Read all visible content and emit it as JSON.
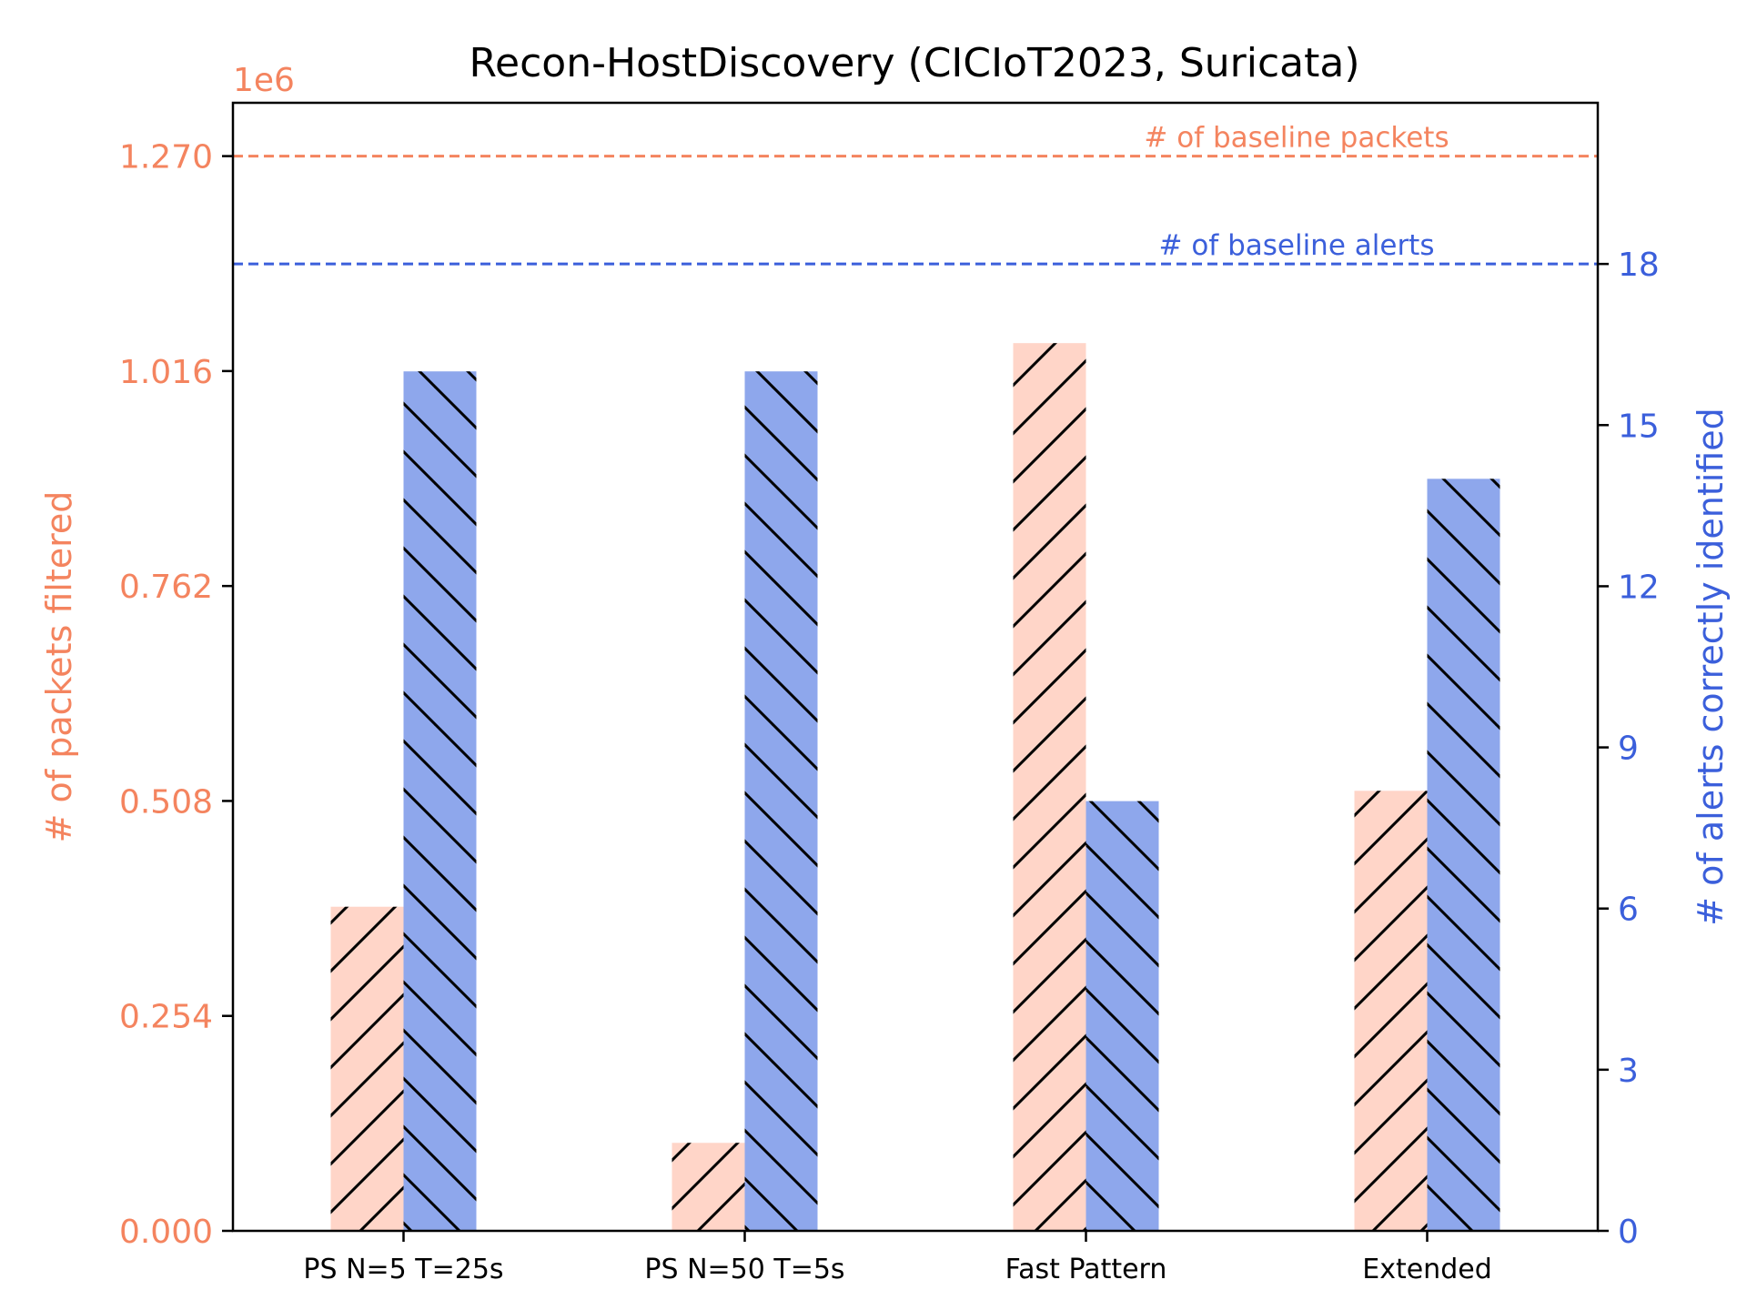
{
  "chart_data": {
    "type": "bar",
    "title": "Recon-HostDiscovery (CICIoT2023, Suricata)",
    "categories": [
      "PS N=5 T=25s",
      "PS N=50 T=5s",
      "Fast Pattern",
      "Extended"
    ],
    "y_left": {
      "label": "# of packets filtered",
      "offset_label": "1e6",
      "scale": 1000000,
      "ylim": [
        0,
        1.333
      ],
      "ticks": [
        "0.000",
        "0.254",
        "0.508",
        "0.762",
        "1.016",
        "1.270"
      ],
      "color": "#f4845f"
    },
    "y_right": {
      "label": "# of alerts correctly identified",
      "ylim": [
        0,
        21
      ],
      "ticks": [
        "0",
        "3",
        "6",
        "9",
        "12",
        "15",
        "18"
      ],
      "color": "#3b5fdb"
    },
    "series": [
      {
        "axis": "left",
        "values": [
          383000,
          104000,
          1049000,
          520000
        ],
        "fill": "#ffd5c8",
        "hatch": "forward"
      },
      {
        "axis": "right",
        "values": [
          16,
          16,
          8,
          14
        ],
        "fill": "#8ea7ec",
        "hatch": "back"
      }
    ],
    "reference_lines": [
      {
        "axis": "left",
        "value": 1270000,
        "label": "# of baseline packets",
        "color": "#f4845f"
      },
      {
        "axis": "right",
        "value": 18,
        "label": "# of baseline alerts",
        "color": "#3b5fdb"
      }
    ],
    "grid": false
  }
}
